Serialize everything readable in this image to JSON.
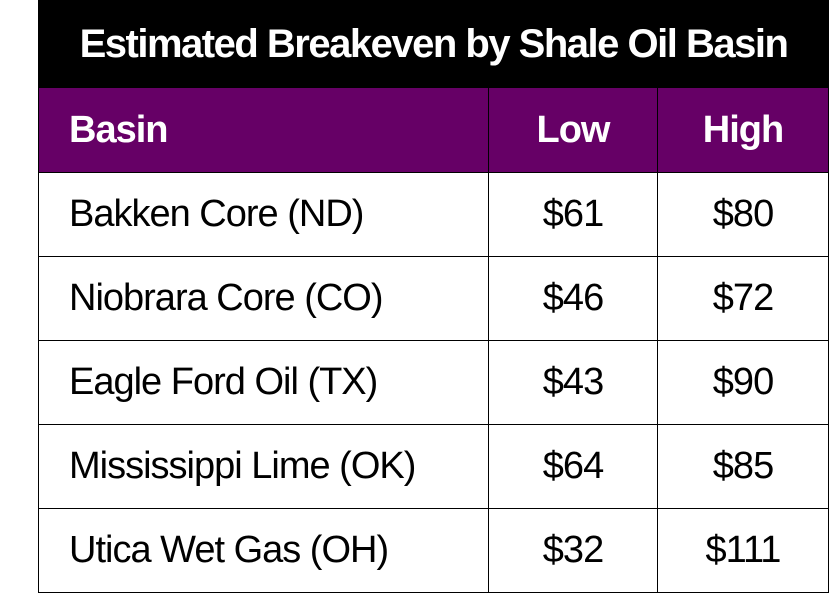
{
  "table": {
    "title": "Estimated Breakeven by Shale Oil Basin",
    "header": [
      "Basin",
      "Low",
      "High"
    ],
    "rows": [
      [
        "Bakken Core (ND)",
        "$61",
        "$80"
      ],
      [
        "Niobrara Core (CO)",
        "$46",
        "$72"
      ],
      [
        "Eagle Ford Oil (TX)",
        "$43",
        "$90"
      ],
      [
        "Mississippi Lime (OK)",
        "$64",
        "$85"
      ],
      [
        "Utica Wet Gas (OH)",
        "$32",
        "$111"
      ]
    ]
  }
}
